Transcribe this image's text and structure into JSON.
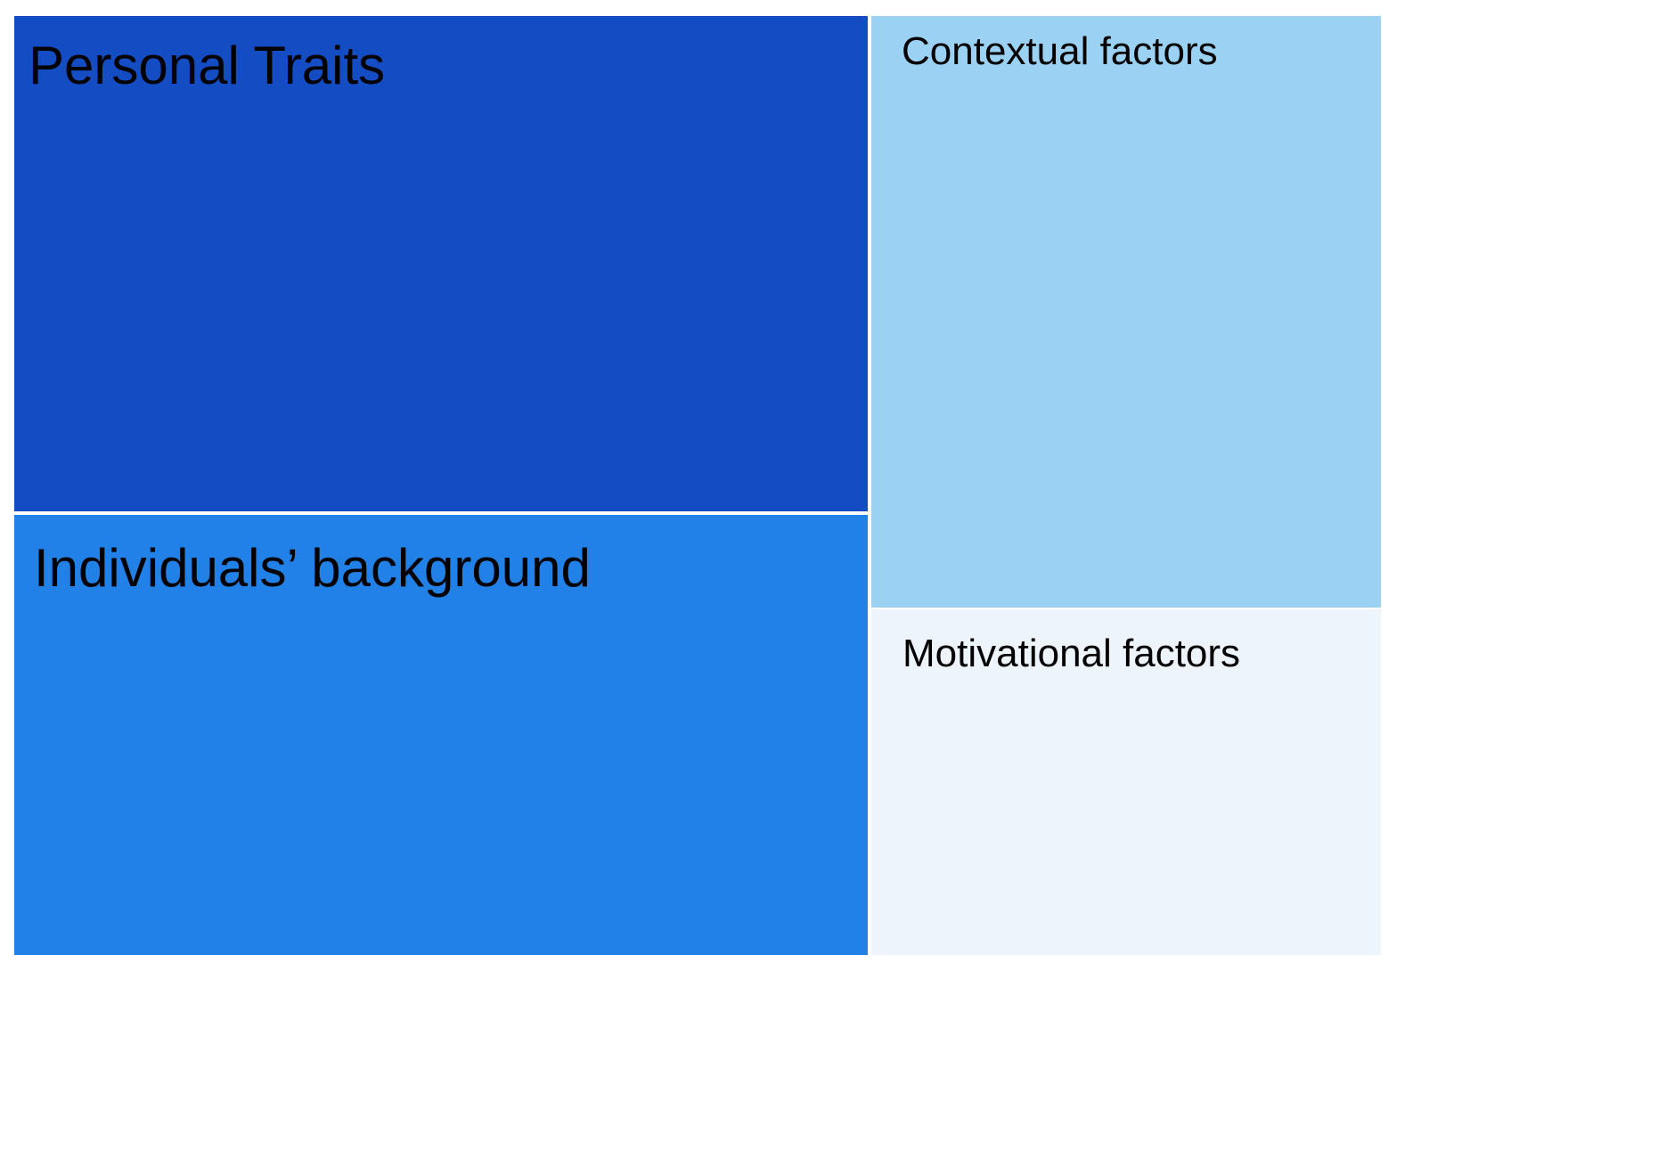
{
  "chart_data": {
    "type": "treemap",
    "title": "",
    "grid": false,
    "legend": "none",
    "categories": [
      "Personal Traits",
      "Individuals’ background",
      "Contextual factors",
      "Motivational factors"
    ],
    "values": [
      0.319,
      0.283,
      0.253,
      0.145
    ],
    "colors": [
      "#144DC3",
      "#2281E7",
      "#9BD1F2",
      "#EDF4FB"
    ]
  }
}
